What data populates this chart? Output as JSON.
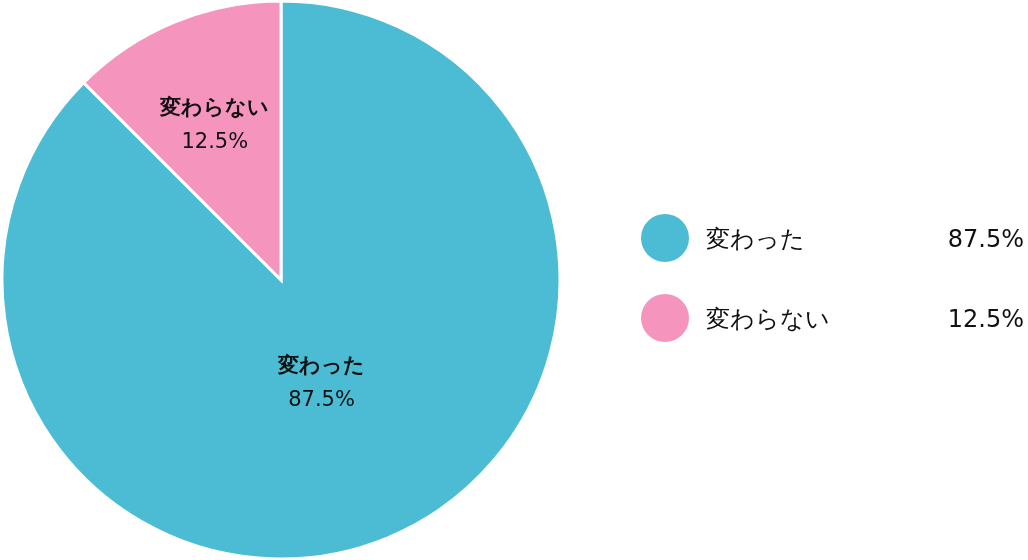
{
  "chart_data": {
    "type": "pie",
    "categories": [
      "変わった",
      "変わらない"
    ],
    "values": [
      87.5,
      12.5
    ],
    "colors": [
      "#4bbcd4",
      "#f595be"
    ],
    "value_labels": [
      "87.5%",
      "12.5%"
    ],
    "legend": "right"
  }
}
